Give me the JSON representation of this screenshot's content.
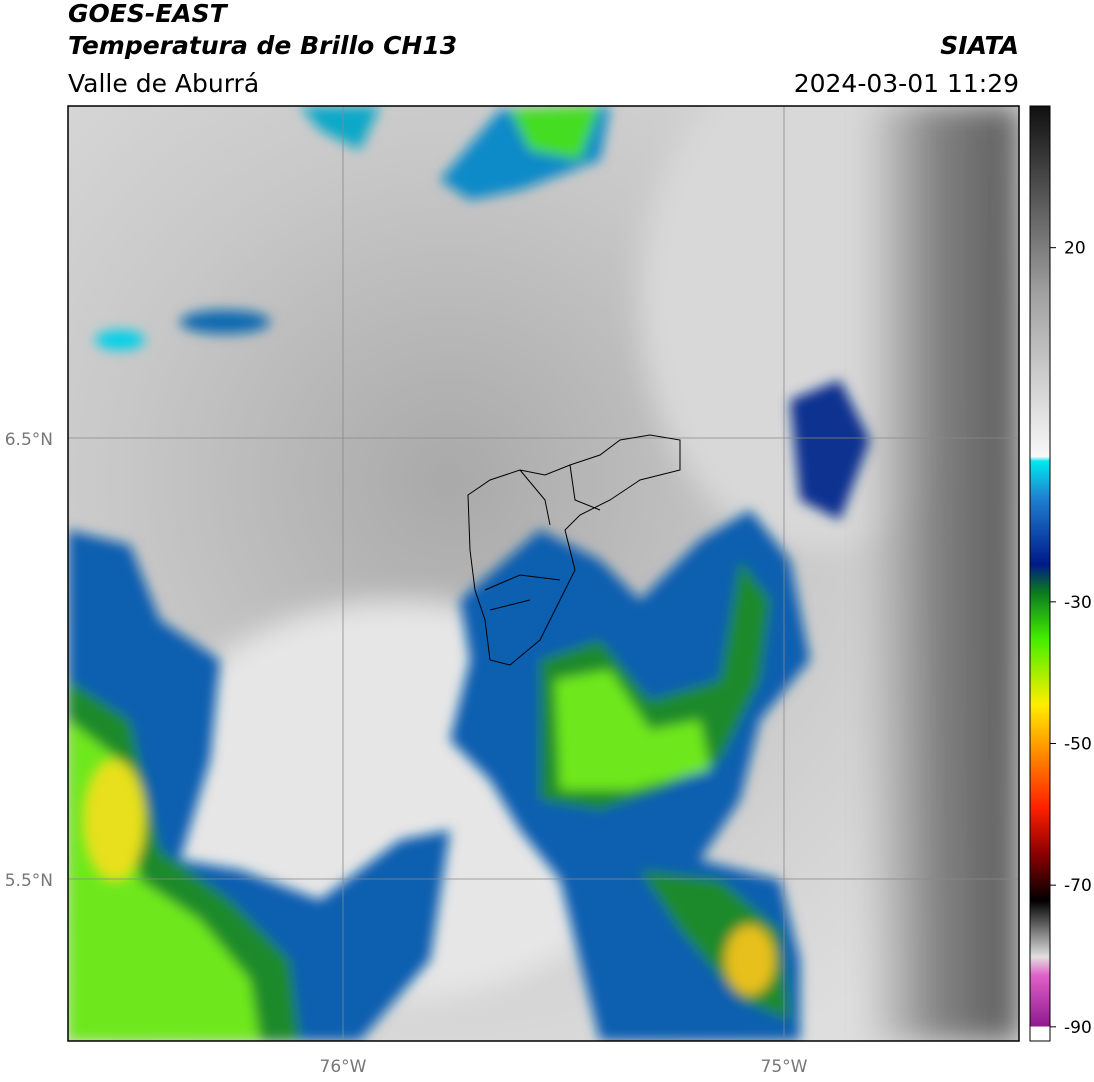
{
  "header": {
    "title": "GOES-EAST",
    "subtitle": "Temperatura de Brillo CH13",
    "region": "Valle de Aburrá",
    "source": "SIATA",
    "datetime": "2024-03-01 11:29"
  },
  "map": {
    "lat_labels": [
      "6.5°N",
      "5.5°N"
    ],
    "lon_labels": [
      "76°W",
      "75°W"
    ]
  },
  "colorbar": {
    "range": [
      -92,
      40
    ],
    "ticks": [
      20,
      -30,
      -50,
      -70,
      -90
    ]
  }
}
